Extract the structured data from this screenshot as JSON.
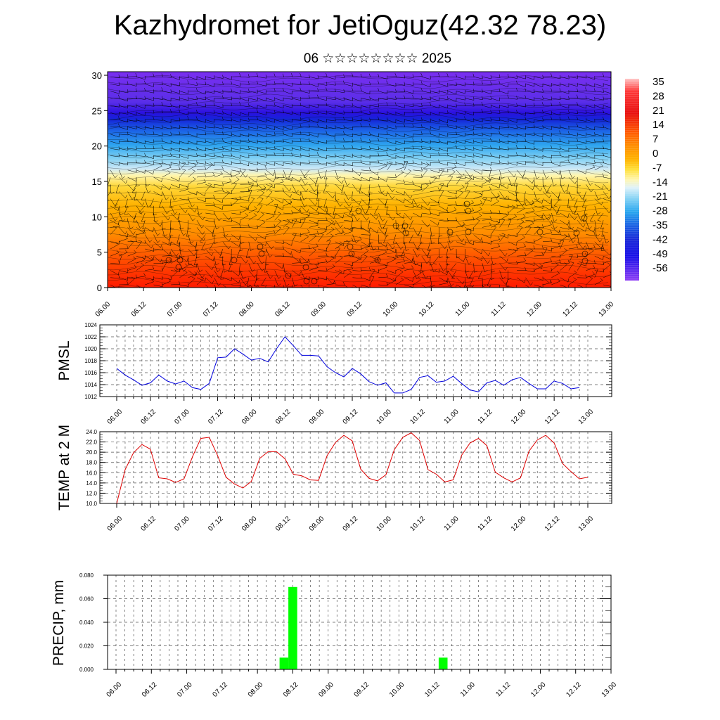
{
  "title": "Kazhydromet for JetiOguz(42.32 78.23)",
  "subtitle": "06 ☆☆☆☆☆☆☆☆ 2025",
  "colors": {
    "pmsl_line": "#0000dd",
    "temp_line": "#dd0000",
    "precip_bar": "#00ff00",
    "grid": "#555555"
  },
  "chart_data": [
    {
      "type": "heatmap",
      "name_hint": "vertical cross-section",
      "x_tick_labels": [
        "06.00",
        "06.12",
        "07.00",
        "07.12",
        "08.00",
        "08.12",
        "09.00",
        "09.12",
        "10.00",
        "10.12",
        "11.00",
        "11.12",
        "12.00",
        "12.12",
        "13.00"
      ],
      "y_ticks": [
        0,
        5,
        10,
        15,
        20,
        25,
        30
      ],
      "ylim": [
        0,
        30.5
      ],
      "colorbar_labels": [
        "35",
        "28",
        "21",
        "14",
        "7",
        "0",
        "-7",
        "-14",
        "-21",
        "-28",
        "-35",
        "-42",
        "-49",
        "-56"
      ],
      "colorbar_range": [
        -63,
        42
      ],
      "overlay": "wind barbs"
    },
    {
      "type": "line",
      "ylabel": "PMSL",
      "ylim": [
        1012,
        1024
      ],
      "y_ticks": [
        "1012",
        "1014",
        "1016",
        "1018",
        "1020",
        "1022",
        "1024"
      ],
      "x_tick_labels": [
        "06.00",
        "06.12",
        "07.00",
        "07.12",
        "08.00",
        "08.12",
        "09.00",
        "09.12",
        "10.00",
        "10.12",
        "11.00",
        "11.12",
        "12.00",
        "12.12",
        "13.00"
      ],
      "x_step_hours": 3,
      "values": [
        1016.7,
        1015.6,
        1014.8,
        1013.9,
        1014.3,
        1015.6,
        1014.6,
        1014.1,
        1014.6,
        1013.5,
        1013.2,
        1014.2,
        1018.5,
        1018.6,
        1020.0,
        1019.1,
        1018.1,
        1018.4,
        1017.8,
        1020.0,
        1022.0,
        1020.5,
        1018.9,
        1018.9,
        1018.8,
        1017.0,
        1016.0,
        1015.3,
        1016.7,
        1015.8,
        1014.5,
        1013.9,
        1014.3,
        1012.6,
        1012.6,
        1013.2,
        1015.2,
        1015.5,
        1014.4,
        1014.6,
        1015.4,
        1014.2,
        1013.1,
        1012.8,
        1014.3,
        1014.7,
        1013.9,
        1014.8,
        1015.2,
        1014.2,
        1013.3,
        1013.3,
        1014.6,
        1014.2,
        1013.3,
        1013.5
      ]
    },
    {
      "type": "line",
      "ylabel": "TEMP at 2 M",
      "ylim": [
        10,
        24
      ],
      "y_ticks": [
        "10.0",
        "12.0",
        "14.0",
        "16.0",
        "18.0",
        "20.0",
        "22.0",
        "24.0"
      ],
      "x_tick_labels": [
        "06.00",
        "06.12",
        "07.00",
        "07.12",
        "08.00",
        "08.12",
        "09.00",
        "09.12",
        "10.00",
        "10.12",
        "11.00",
        "11.12",
        "12.00",
        "12.12",
        "13.00"
      ],
      "x_step_hours": 3,
      "values": [
        10.0,
        16.6,
        19.9,
        21.5,
        20.6,
        15.0,
        14.8,
        14.1,
        14.8,
        19.1,
        22.7,
        22.9,
        19.3,
        15.1,
        13.8,
        13.0,
        14.3,
        18.8,
        20.1,
        20.1,
        18.7,
        15.7,
        15.4,
        14.6,
        14.5,
        19.3,
        21.9,
        23.3,
        22.2,
        16.7,
        14.9,
        14.4,
        15.6,
        20.5,
        22.9,
        23.8,
        22.3,
        16.6,
        15.7,
        14.2,
        14.6,
        19.4,
        21.8,
        22.7,
        21.3,
        16.1,
        15.0,
        14.2,
        15.0,
        20.2,
        22.4,
        23.3,
        21.8,
        17.8,
        16.2,
        14.8,
        15.1
      ]
    },
    {
      "type": "bar",
      "ylabel": "PRECIP, mm",
      "ylim": [
        0,
        0.08
      ],
      "y_ticks": [
        "0.000",
        "0.020",
        "0.040",
        "0.060",
        "0.080"
      ],
      "x_tick_labels": [
        "06.00",
        "06.12",
        "07.00",
        "07.12",
        "08.00",
        "08.12",
        "09.00",
        "09.12",
        "10.00",
        "10.12",
        "11.00",
        "11.12",
        "12.00",
        "12.12",
        "13.00"
      ],
      "bars": [
        {
          "time": "08.09",
          "value": 0.01
        },
        {
          "time": "08.12",
          "value": 0.07
        },
        {
          "time": "10.15",
          "value": 0.01
        }
      ]
    }
  ]
}
